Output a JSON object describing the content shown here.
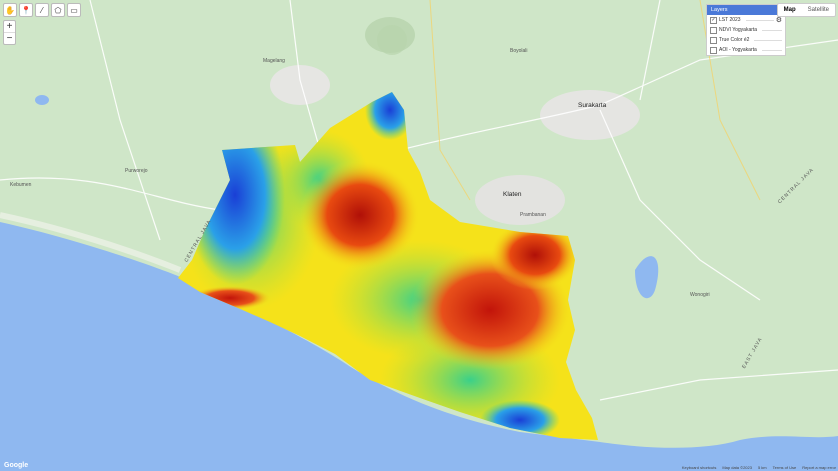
{
  "toolbar": {
    "icons": [
      "hand-icon",
      "marker-icon",
      "line-icon",
      "polygon-icon",
      "rectangle-icon"
    ]
  },
  "zoom": {
    "in_label": "+",
    "out_label": "−"
  },
  "map_type": {
    "map_label": "Map",
    "satellite_label": "Satellite",
    "selected": "Map"
  },
  "layers_panel": {
    "title": "Layers",
    "items": [
      {
        "label": "LST 2023",
        "checked": true
      },
      {
        "label": "NDVI Yogyakarta",
        "checked": false
      },
      {
        "label": "True Color é2",
        "checked": false
      },
      {
        "label": "AOI - Yogyakarta",
        "checked": false
      }
    ]
  },
  "places": {
    "surakarta": "Surakarta",
    "klaten": "Klaten",
    "magelang": "Magelang",
    "purworejo": "Purworejo",
    "kebumen": "Kebumen",
    "prambanan": "Prambanan",
    "boyolali": "Boyolali",
    "central_java_w": "CENTRAL JAVA",
    "central_java_e": "CENTRAL JAVA",
    "east_java": "EAST JAVA",
    "wonogiri": "Wonogiri"
  },
  "footer": {
    "shortcuts": "Keyboard shortcuts",
    "map_data": "Map data ©2023",
    "scale": "5 km",
    "terms": "Terms of Use",
    "report": "Report a map error"
  },
  "google_logo": "Google",
  "colors": {
    "land": "#cfe6c8",
    "sea": "#8fb8f0",
    "lst_cool": "#1a3fd6",
    "lst_mid": "#2fd0a0",
    "lst_warm": "#f5e21a",
    "lst_hot": "#c81a0c"
  }
}
